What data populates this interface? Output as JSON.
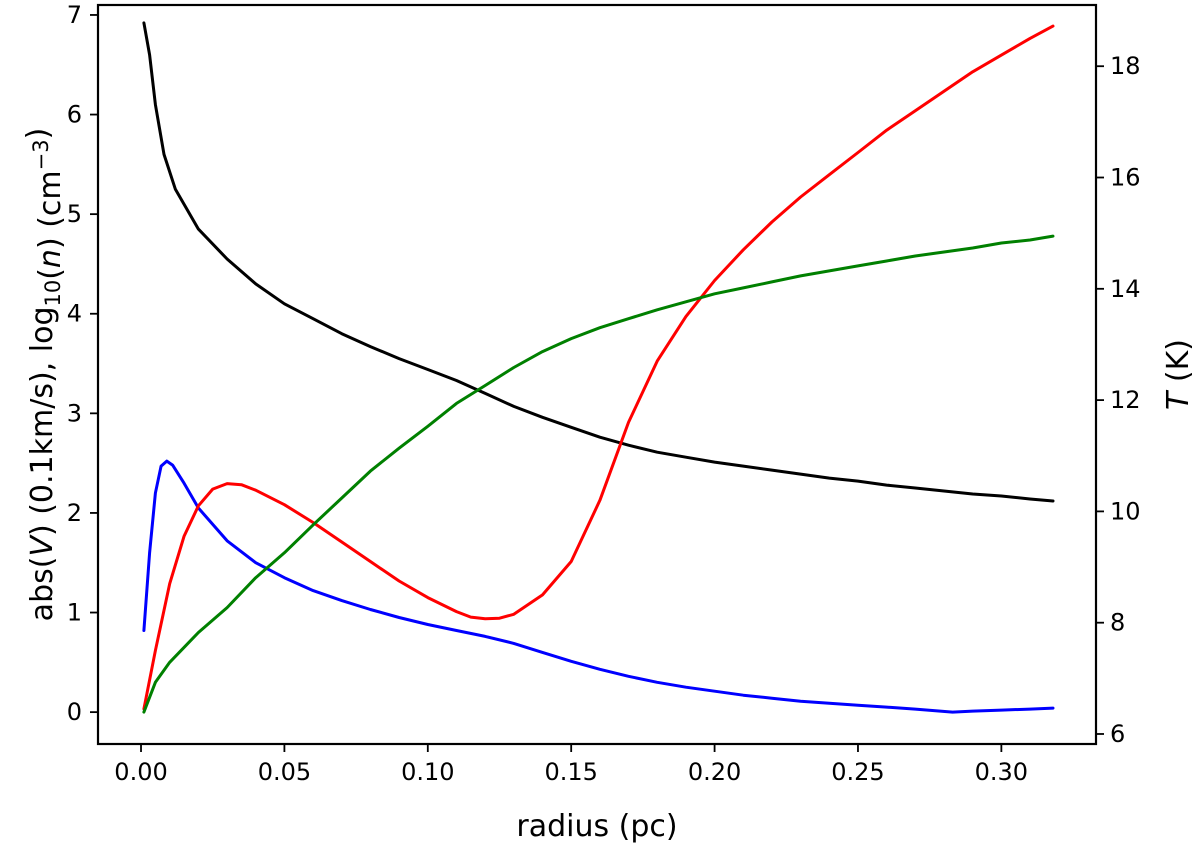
{
  "chart_data": {
    "type": "line",
    "xlabel": "radius (pc)",
    "ylabel_left": {
      "parts": [
        {
          "t": "abs("
        },
        {
          "t": "V",
          "style": "italic"
        },
        {
          "t": ") (0.1km/s),  log"
        },
        {
          "t": "10",
          "style": "sub"
        },
        {
          "t": "("
        },
        {
          "t": "n",
          "style": "italic"
        },
        {
          "t": ") (cm"
        },
        {
          "t": "−3",
          "style": "sup"
        },
        {
          "t": ")"
        }
      ]
    },
    "ylabel_right": {
      "parts": [
        {
          "t": "T",
          "style": "italic"
        },
        {
          "t": " (K)"
        }
      ]
    },
    "xlim": [
      -0.015,
      0.333
    ],
    "ylim_left": [
      -0.32,
      7.1
    ],
    "ylim_right": [
      5.82,
      19.1
    ],
    "xticks": [
      {
        "v": 0.0,
        "label": "0.00"
      },
      {
        "v": 0.05,
        "label": "0.05"
      },
      {
        "v": 0.1,
        "label": "0.10"
      },
      {
        "v": 0.15,
        "label": "0.15"
      },
      {
        "v": 0.2,
        "label": "0.20"
      },
      {
        "v": 0.25,
        "label": "0.25"
      },
      {
        "v": 0.3,
        "label": "0.30"
      }
    ],
    "yticks_left": [
      {
        "v": 0,
        "label": "0"
      },
      {
        "v": 1,
        "label": "1"
      },
      {
        "v": 2,
        "label": "2"
      },
      {
        "v": 3,
        "label": "3"
      },
      {
        "v": 4,
        "label": "4"
      },
      {
        "v": 5,
        "label": "5"
      },
      {
        "v": 6,
        "label": "6"
      },
      {
        "v": 7,
        "label": "7"
      }
    ],
    "yticks_right": [
      {
        "v": 6,
        "label": "6"
      },
      {
        "v": 8,
        "label": "8"
      },
      {
        "v": 10,
        "label": "10"
      },
      {
        "v": 12,
        "label": "12"
      },
      {
        "v": 14,
        "label": "14"
      },
      {
        "v": 16,
        "label": "16"
      },
      {
        "v": 18,
        "label": "18"
      }
    ],
    "grid": false,
    "legend": "none",
    "series": [
      {
        "color": "#000000",
        "axis": "left",
        "points": [
          [
            0.001,
            6.92
          ],
          [
            0.003,
            6.6
          ],
          [
            0.005,
            6.1
          ],
          [
            0.008,
            5.6
          ],
          [
            0.012,
            5.25
          ],
          [
            0.02,
            4.85
          ],
          [
            0.03,
            4.55
          ],
          [
            0.04,
            4.3
          ],
          [
            0.05,
            4.1
          ],
          [
            0.06,
            3.95
          ],
          [
            0.07,
            3.8
          ],
          [
            0.08,
            3.67
          ],
          [
            0.09,
            3.55
          ],
          [
            0.1,
            3.44
          ],
          [
            0.11,
            3.33
          ],
          [
            0.12,
            3.2
          ],
          [
            0.13,
            3.07
          ],
          [
            0.14,
            2.96
          ],
          [
            0.15,
            2.86
          ],
          [
            0.16,
            2.76
          ],
          [
            0.17,
            2.68
          ],
          [
            0.18,
            2.61
          ],
          [
            0.19,
            2.56
          ],
          [
            0.2,
            2.51
          ],
          [
            0.21,
            2.47
          ],
          [
            0.22,
            2.43
          ],
          [
            0.23,
            2.39
          ],
          [
            0.24,
            2.35
          ],
          [
            0.25,
            2.32
          ],
          [
            0.26,
            2.28
          ],
          [
            0.27,
            2.25
          ],
          [
            0.28,
            2.22
          ],
          [
            0.29,
            2.19
          ],
          [
            0.3,
            2.17
          ],
          [
            0.31,
            2.14
          ],
          [
            0.318,
            2.12
          ]
        ]
      },
      {
        "color": "#0000ff",
        "axis": "left",
        "points": [
          [
            0.001,
            0.82
          ],
          [
            0.003,
            1.6
          ],
          [
            0.005,
            2.2
          ],
          [
            0.007,
            2.47
          ],
          [
            0.009,
            2.52
          ],
          [
            0.011,
            2.48
          ],
          [
            0.015,
            2.3
          ],
          [
            0.02,
            2.05
          ],
          [
            0.03,
            1.72
          ],
          [
            0.04,
            1.5
          ],
          [
            0.05,
            1.35
          ],
          [
            0.06,
            1.22
          ],
          [
            0.07,
            1.12
          ],
          [
            0.08,
            1.03
          ],
          [
            0.09,
            0.95
          ],
          [
            0.1,
            0.88
          ],
          [
            0.11,
            0.82
          ],
          [
            0.12,
            0.76
          ],
          [
            0.13,
            0.69
          ],
          [
            0.14,
            0.6
          ],
          [
            0.15,
            0.51
          ],
          [
            0.16,
            0.43
          ],
          [
            0.17,
            0.36
          ],
          [
            0.18,
            0.3
          ],
          [
            0.19,
            0.25
          ],
          [
            0.2,
            0.21
          ],
          [
            0.21,
            0.17
          ],
          [
            0.22,
            0.14
          ],
          [
            0.23,
            0.11
          ],
          [
            0.24,
            0.09
          ],
          [
            0.25,
            0.07
          ],
          [
            0.26,
            0.05
          ],
          [
            0.27,
            0.03
          ],
          [
            0.283,
            0.0
          ],
          [
            0.29,
            0.01
          ],
          [
            0.3,
            0.02
          ],
          [
            0.31,
            0.03
          ],
          [
            0.318,
            0.04
          ]
        ]
      },
      {
        "color": "#ff0000",
        "axis": "right",
        "points": [
          [
            0.001,
            6.45
          ],
          [
            0.005,
            7.5
          ],
          [
            0.01,
            8.7
          ],
          [
            0.015,
            9.55
          ],
          [
            0.02,
            10.1
          ],
          [
            0.025,
            10.4
          ],
          [
            0.03,
            10.5
          ],
          [
            0.035,
            10.48
          ],
          [
            0.04,
            10.38
          ],
          [
            0.05,
            10.12
          ],
          [
            0.06,
            9.8
          ],
          [
            0.07,
            9.45
          ],
          [
            0.08,
            9.1
          ],
          [
            0.09,
            8.75
          ],
          [
            0.1,
            8.45
          ],
          [
            0.11,
            8.2
          ],
          [
            0.115,
            8.1
          ],
          [
            0.12,
            8.07
          ],
          [
            0.125,
            8.08
          ],
          [
            0.13,
            8.15
          ],
          [
            0.14,
            8.5
          ],
          [
            0.15,
            9.1
          ],
          [
            0.16,
            10.2
          ],
          [
            0.17,
            11.6
          ],
          [
            0.18,
            12.7
          ],
          [
            0.19,
            13.5
          ],
          [
            0.2,
            14.15
          ],
          [
            0.21,
            14.7
          ],
          [
            0.22,
            15.2
          ],
          [
            0.23,
            15.65
          ],
          [
            0.24,
            16.05
          ],
          [
            0.25,
            16.45
          ],
          [
            0.26,
            16.85
          ],
          [
            0.27,
            17.2
          ],
          [
            0.28,
            17.55
          ],
          [
            0.29,
            17.9
          ],
          [
            0.3,
            18.2
          ],
          [
            0.31,
            18.5
          ],
          [
            0.318,
            18.72
          ]
        ]
      },
      {
        "color": "#008000",
        "axis": "left",
        "points": [
          [
            0.001,
            0.0
          ],
          [
            0.005,
            0.3
          ],
          [
            0.01,
            0.5
          ],
          [
            0.02,
            0.8
          ],
          [
            0.03,
            1.05
          ],
          [
            0.04,
            1.35
          ],
          [
            0.05,
            1.6
          ],
          [
            0.06,
            1.88
          ],
          [
            0.07,
            2.15
          ],
          [
            0.08,
            2.42
          ],
          [
            0.09,
            2.65
          ],
          [
            0.1,
            2.87
          ],
          [
            0.11,
            3.1
          ],
          [
            0.12,
            3.28
          ],
          [
            0.13,
            3.46
          ],
          [
            0.14,
            3.62
          ],
          [
            0.15,
            3.75
          ],
          [
            0.16,
            3.86
          ],
          [
            0.17,
            3.95
          ],
          [
            0.18,
            4.04
          ],
          [
            0.19,
            4.12
          ],
          [
            0.2,
            4.2
          ],
          [
            0.21,
            4.26
          ],
          [
            0.22,
            4.32
          ],
          [
            0.23,
            4.38
          ],
          [
            0.24,
            4.43
          ],
          [
            0.25,
            4.48
          ],
          [
            0.26,
            4.53
          ],
          [
            0.27,
            4.58
          ],
          [
            0.28,
            4.62
          ],
          [
            0.29,
            4.66
          ],
          [
            0.3,
            4.71
          ],
          [
            0.31,
            4.74
          ],
          [
            0.318,
            4.78
          ]
        ]
      }
    ]
  }
}
